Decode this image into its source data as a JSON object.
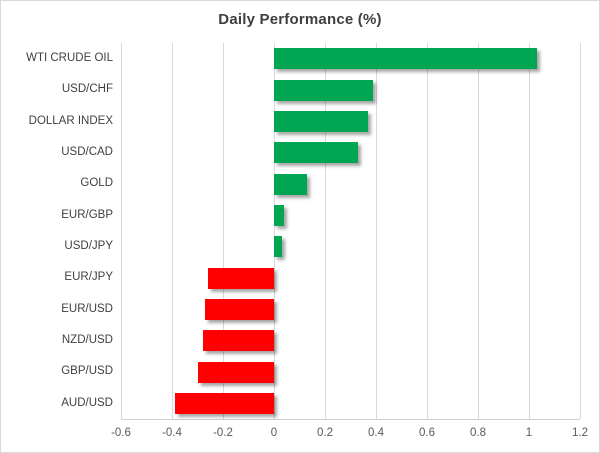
{
  "chart": {
    "title": "Daily Performance (%)"
  },
  "chart_data": {
    "type": "bar",
    "orientation": "horizontal",
    "title": "Daily Performance (%)",
    "categories": [
      "WTI CRUDE OIL",
      "USD/CHF",
      "DOLLAR INDEX",
      "USD/CAD",
      "GOLD",
      "EUR/GBP",
      "USD/JPY",
      "EUR/JPY",
      "EUR/USD",
      "NZD/USD",
      "GBP/USD",
      "AUD/USD"
    ],
    "values": [
      1.03,
      0.39,
      0.37,
      0.33,
      0.13,
      0.04,
      0.03,
      -0.26,
      -0.27,
      -0.28,
      -0.3,
      -0.39
    ],
    "xlabel": "",
    "ylabel": "",
    "xlim": [
      -0.6,
      1.2
    ],
    "x_ticks": [
      -0.6,
      -0.4,
      -0.2,
      0,
      0.2,
      0.4,
      0.6,
      0.8,
      1,
      1.2
    ],
    "x_tick_labels": [
      "-0.6",
      "-0.4",
      "-0.2",
      "0",
      "0.2",
      "0.4",
      "0.6",
      "0.8",
      "1",
      "1.2"
    ],
    "grid": true,
    "legend": "none",
    "positive_color": "#00A651",
    "negative_color": "#FF0000",
    "gridline_color": "#d9d9d9",
    "title_color": "#3f3f3f",
    "label_color": "#404040",
    "tick_color": "#595959"
  }
}
